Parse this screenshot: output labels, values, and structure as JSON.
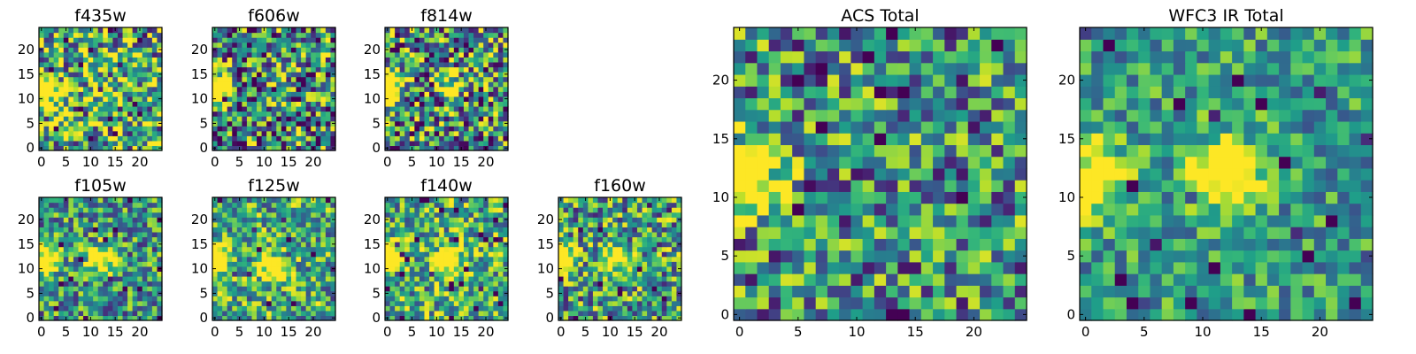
{
  "chart_data": [
    {
      "type": "heatmap",
      "title": "f435w",
      "grid_size": 25,
      "seed": 11,
      "hot_spots": [
        {
          "x": 0,
          "y": 12,
          "strength": 1.2
        }
      ],
      "base_level": 0.62,
      "noise_level": 0.55,
      "xlim": [
        0,
        24
      ],
      "ylim": [
        0,
        24
      ],
      "x_ticks": [
        0,
        5,
        10,
        15,
        20
      ],
      "y_ticks": [
        0,
        5,
        10,
        15,
        20
      ],
      "colormap": "viridis"
    },
    {
      "type": "heatmap",
      "title": "f606w",
      "grid_size": 25,
      "seed": 23,
      "hot_spots": [
        {
          "x": 0,
          "y": 12,
          "strength": 1.2
        }
      ],
      "base_level": 0.5,
      "noise_level": 0.55,
      "xlim": [
        0,
        24
      ],
      "ylim": [
        0,
        24
      ],
      "x_ticks": [
        0,
        5,
        10,
        15,
        20
      ],
      "y_ticks": [
        0,
        5,
        10,
        15,
        20
      ],
      "colormap": "viridis"
    },
    {
      "type": "heatmap",
      "title": "f814w",
      "grid_size": 25,
      "seed": 37,
      "hot_spots": [
        {
          "x": 0,
          "y": 12,
          "strength": 1.2
        },
        {
          "x": 13,
          "y": 13,
          "strength": 0.5
        }
      ],
      "base_level": 0.5,
      "noise_level": 0.55,
      "xlim": [
        0,
        24
      ],
      "ylim": [
        0,
        24
      ],
      "x_ticks": [
        0,
        5,
        10,
        15,
        20
      ],
      "y_ticks": [
        0,
        5,
        10,
        15,
        20
      ],
      "colormap": "viridis"
    },
    {
      "type": "heatmap",
      "title": "f105w",
      "grid_size": 25,
      "seed": 41,
      "hot_spots": [
        {
          "x": 0,
          "y": 12,
          "strength": 1.2
        },
        {
          "x": 12,
          "y": 12,
          "strength": 0.7
        }
      ],
      "base_level": 0.52,
      "noise_level": 0.4,
      "xlim": [
        0,
        24
      ],
      "ylim": [
        0,
        24
      ],
      "x_ticks": [
        0,
        5,
        10,
        15,
        20
      ],
      "y_ticks": [
        0,
        5,
        10,
        15,
        20
      ],
      "colormap": "viridis"
    },
    {
      "type": "heatmap",
      "title": "f125w",
      "grid_size": 25,
      "seed": 53,
      "hot_spots": [
        {
          "x": 0,
          "y": 12,
          "strength": 1.0
        },
        {
          "x": 12,
          "y": 10,
          "strength": 0.8
        }
      ],
      "base_level": 0.6,
      "noise_level": 0.4,
      "xlim": [
        0,
        24
      ],
      "ylim": [
        0,
        24
      ],
      "x_ticks": [
        0,
        5,
        10,
        15,
        20
      ],
      "y_ticks": [
        0,
        5,
        10,
        15,
        20
      ],
      "colormap": "viridis"
    },
    {
      "type": "heatmap",
      "title": "f140w",
      "grid_size": 25,
      "seed": 67,
      "hot_spots": [
        {
          "x": 0,
          "y": 12,
          "strength": 1.0
        },
        {
          "x": 12,
          "y": 12,
          "strength": 0.9
        }
      ],
      "base_level": 0.62,
      "noise_level": 0.4,
      "xlim": [
        0,
        24
      ],
      "ylim": [
        0,
        24
      ],
      "x_ticks": [
        0,
        5,
        10,
        15,
        20
      ],
      "y_ticks": [
        0,
        5,
        10,
        15,
        20
      ],
      "colormap": "viridis"
    },
    {
      "type": "heatmap",
      "title": "f160w",
      "grid_size": 25,
      "seed": 79,
      "hot_spots": [
        {
          "x": 0,
          "y": 12,
          "strength": 1.0
        },
        {
          "x": 11,
          "y": 12,
          "strength": 0.7
        }
      ],
      "base_level": 0.55,
      "noise_level": 0.45,
      "xlim": [
        0,
        24
      ],
      "ylim": [
        0,
        24
      ],
      "x_ticks": [
        0,
        5,
        10,
        15,
        20
      ],
      "y_ticks": [
        0,
        5,
        10,
        15,
        20
      ],
      "colormap": "viridis"
    },
    {
      "type": "heatmap",
      "title": "ACS Total",
      "grid_size": 25,
      "seed": 97,
      "hot_spots": [
        {
          "x": 1,
          "y": 12,
          "strength": 1.1
        }
      ],
      "base_level": 0.5,
      "noise_level": 0.45,
      "xlim": [
        0,
        24
      ],
      "ylim": [
        0,
        24
      ],
      "x_ticks": [
        0,
        5,
        10,
        15,
        20
      ],
      "y_ticks": [
        0,
        5,
        10,
        15,
        20
      ],
      "colormap": "viridis"
    },
    {
      "type": "heatmap",
      "title": "WFC3 IR Total",
      "grid_size": 25,
      "seed": 131,
      "hot_spots": [
        {
          "x": 0,
          "y": 12,
          "strength": 1.0
        },
        {
          "x": 12,
          "y": 12,
          "strength": 0.9
        }
      ],
      "base_level": 0.55,
      "noise_level": 0.3,
      "xlim": [
        0,
        24
      ],
      "ylim": [
        0,
        24
      ],
      "x_ticks": [
        0,
        5,
        10,
        15,
        20
      ],
      "y_ticks": [
        0,
        5,
        10,
        15,
        20
      ],
      "colormap": "viridis"
    }
  ]
}
